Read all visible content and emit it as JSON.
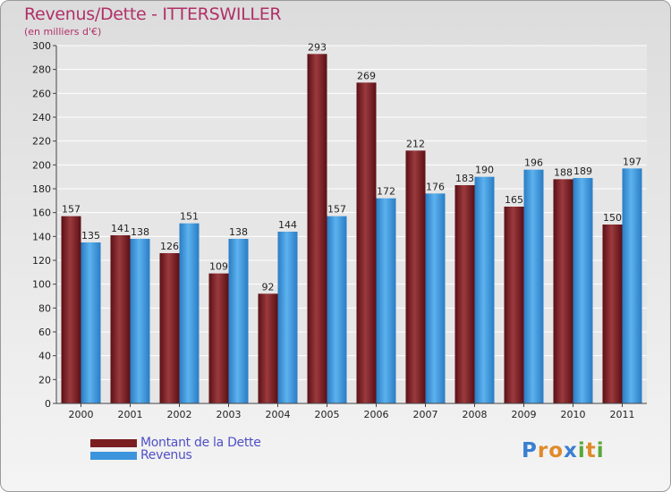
{
  "title": "Revenus/Dette - ITTERSWILLER",
  "subtitle": "(en milliers d'€)",
  "logo": {
    "letters": [
      {
        "char": "P",
        "color": "#3a7fd0"
      },
      {
        "char": "r",
        "color": "#e08a2a"
      },
      {
        "char": "o",
        "color": "#e08a2a"
      },
      {
        "char": "x",
        "color": "#3a7fd0"
      },
      {
        "char": "i",
        "color": "#5aa83a"
      },
      {
        "char": "t",
        "color": "#e08a2a"
      },
      {
        "char": "i",
        "color": "#5aa83a"
      }
    ]
  },
  "chart_data": {
    "type": "bar",
    "categories": [
      "2000",
      "2001",
      "2002",
      "2003",
      "2004",
      "2005",
      "2006",
      "2007",
      "2008",
      "2009",
      "2010",
      "2011"
    ],
    "series": [
      {
        "name": "Montant de la Dette",
        "color": "#7a1e22",
        "values": [
          157,
          141,
          126,
          109,
          92,
          293,
          269,
          212,
          183,
          165,
          188,
          150
        ]
      },
      {
        "name": "Revenus",
        "color": "#3c95dc",
        "values": [
          135,
          138,
          151,
          138,
          144,
          157,
          172,
          176,
          190,
          196,
          189,
          197
        ]
      }
    ],
    "ylim": [
      0,
      300
    ],
    "ytick_step": 20,
    "grid": true,
    "legend": "bottom-left"
  }
}
